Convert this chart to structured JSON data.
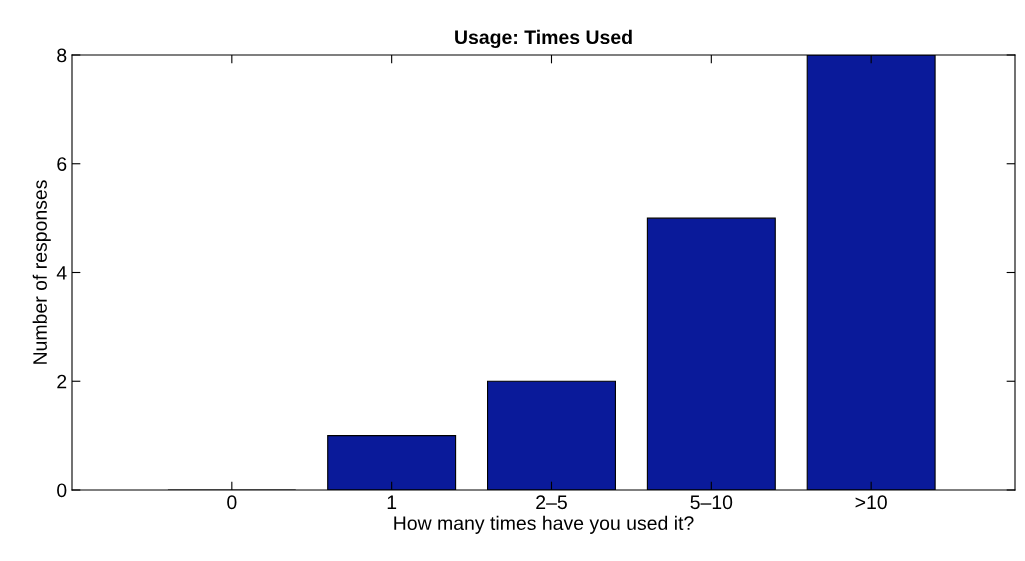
{
  "chart_data": {
    "type": "bar",
    "title": "Usage: Times Used",
    "xlabel": "How many times have you used it?",
    "ylabel": "Number of responses",
    "categories": [
      "0",
      "1",
      "2–5",
      "5–10",
      ">10"
    ],
    "values": [
      0,
      1,
      2,
      5,
      8
    ],
    "color": "#0a1a9a",
    "ylim": [
      0,
      8
    ],
    "yticks": [
      0,
      2,
      4,
      6,
      8
    ],
    "grid": false
  }
}
